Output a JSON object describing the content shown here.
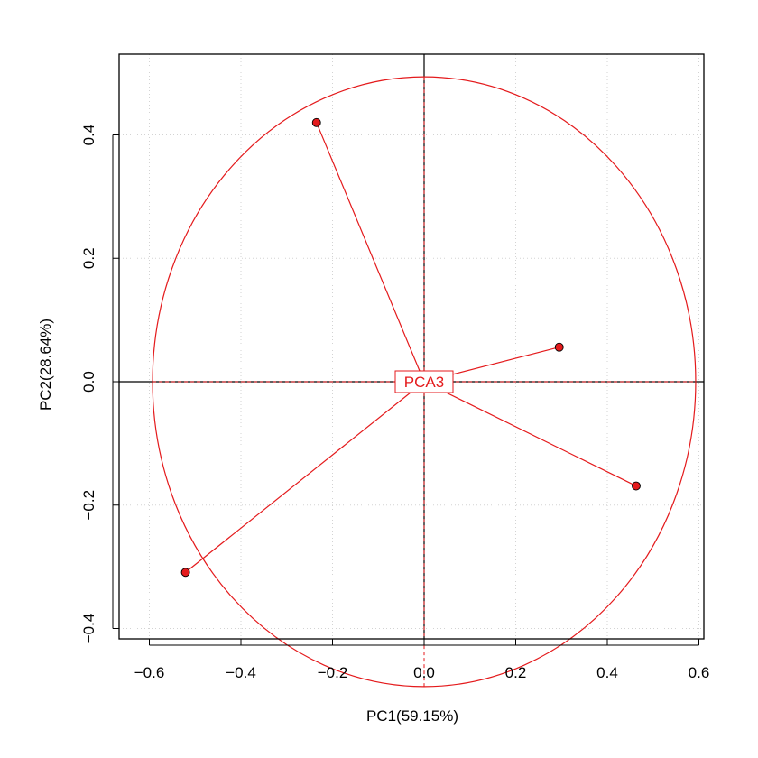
{
  "chart_data": {
    "type": "scatter",
    "title": "",
    "xlabel": "PC1(59.15%)",
    "ylabel": "PC2(28.64%)",
    "xlim": [
      -0.66,
      0.61
    ],
    "ylim": [
      -0.42,
      0.53
    ],
    "xticks": [
      -0.6,
      -0.4,
      -0.2,
      0.0,
      0.2,
      0.4,
      0.6
    ],
    "xtick_labels": [
      "−0.6",
      "−0.4",
      "−0.2",
      "0.0",
      "0.2",
      "0.4",
      "0.6"
    ],
    "yticks": [
      -0.4,
      -0.2,
      0.0,
      0.2,
      0.4
    ],
    "ytick_labels": [
      "−0.4",
      "−0.2",
      "0.0",
      "0.2",
      "0.4"
    ],
    "grid": true,
    "center_label": "PCA3",
    "circle_radius": 0.593,
    "color": "#e41a1c",
    "series": [
      {
        "x": [
          -0.235,
          0.295,
          0.463,
          -0.521
        ],
        "y": [
          0.42,
          0.056,
          -0.169,
          -0.309
        ]
      }
    ]
  }
}
